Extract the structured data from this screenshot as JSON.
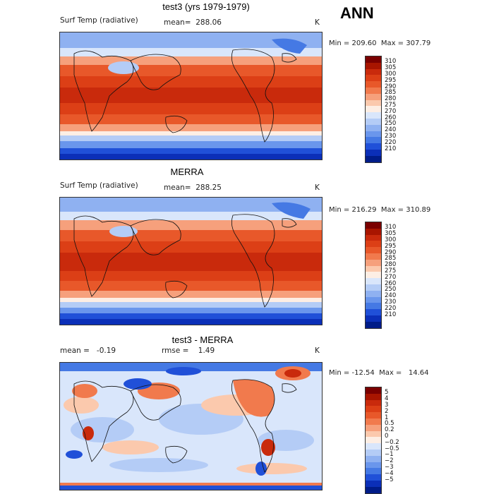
{
  "season": "ANN",
  "panels": [
    {
      "title": "test3 (yrs 1979-1979)",
      "variable": "Surf Temp (radiative)",
      "stat_text": "mean=  288.06",
      "extra_text": "",
      "units": "K",
      "minmax": "Min = 209.60  Max = 307.79",
      "levels": [
        "310",
        "305",
        "300",
        "295",
        "290",
        "285",
        "280",
        "275",
        "270",
        "260",
        "250",
        "240",
        "230",
        "220",
        "210"
      ],
      "colors": [
        "#7a0000",
        "#a81500",
        "#c92a0c",
        "#dc3f16",
        "#e8582a",
        "#f17a4d",
        "#f6a07c",
        "#fbc9ad",
        "#fdeee4",
        "#d9e6fb",
        "#b4ccf6",
        "#8fb1f1",
        "#6a96ec",
        "#4579e4",
        "#2050d8",
        "#0b2fb8",
        "#001c88"
      ]
    },
    {
      "title": "MERRA",
      "variable": "Surf Temp (radiative)",
      "stat_text": "mean=  288.25",
      "extra_text": "",
      "units": "K",
      "minmax": "Min = 216.29  Max = 310.89",
      "levels": [
        "310",
        "305",
        "300",
        "295",
        "290",
        "285",
        "280",
        "275",
        "270",
        "260",
        "250",
        "240",
        "230",
        "220",
        "210"
      ],
      "colors": [
        "#7a0000",
        "#a81500",
        "#c92a0c",
        "#dc3f16",
        "#e8582a",
        "#f17a4d",
        "#f6a07c",
        "#fbc9ad",
        "#fdeee4",
        "#d9e6fb",
        "#b4ccf6",
        "#8fb1f1",
        "#6a96ec",
        "#4579e4",
        "#2050d8",
        "#0b2fb8",
        "#001c88"
      ]
    },
    {
      "title": "test3 - MERRA",
      "variable": "",
      "stat_text": "mean =   -0.19",
      "extra_text": "rmse =    1.49",
      "units": "K",
      "minmax": "Min = -12.54  Max =   14.64",
      "levels": [
        "5",
        "4",
        "3",
        "2",
        "1",
        "0.5",
        "0.2",
        "0",
        "−0.2",
        "−0.5",
        "−1",
        "−2",
        "−3",
        "−4",
        "−5"
      ],
      "colors": [
        "#7a0000",
        "#a81500",
        "#c92a0c",
        "#dc3f16",
        "#e8582a",
        "#f17a4d",
        "#f6a07c",
        "#fbc9ad",
        "#fdeee4",
        "#d9e6fb",
        "#b4ccf6",
        "#8fb1f1",
        "#6a96ec",
        "#4579e4",
        "#2050d8",
        "#0b2fb8",
        "#001c88"
      ]
    }
  ]
}
